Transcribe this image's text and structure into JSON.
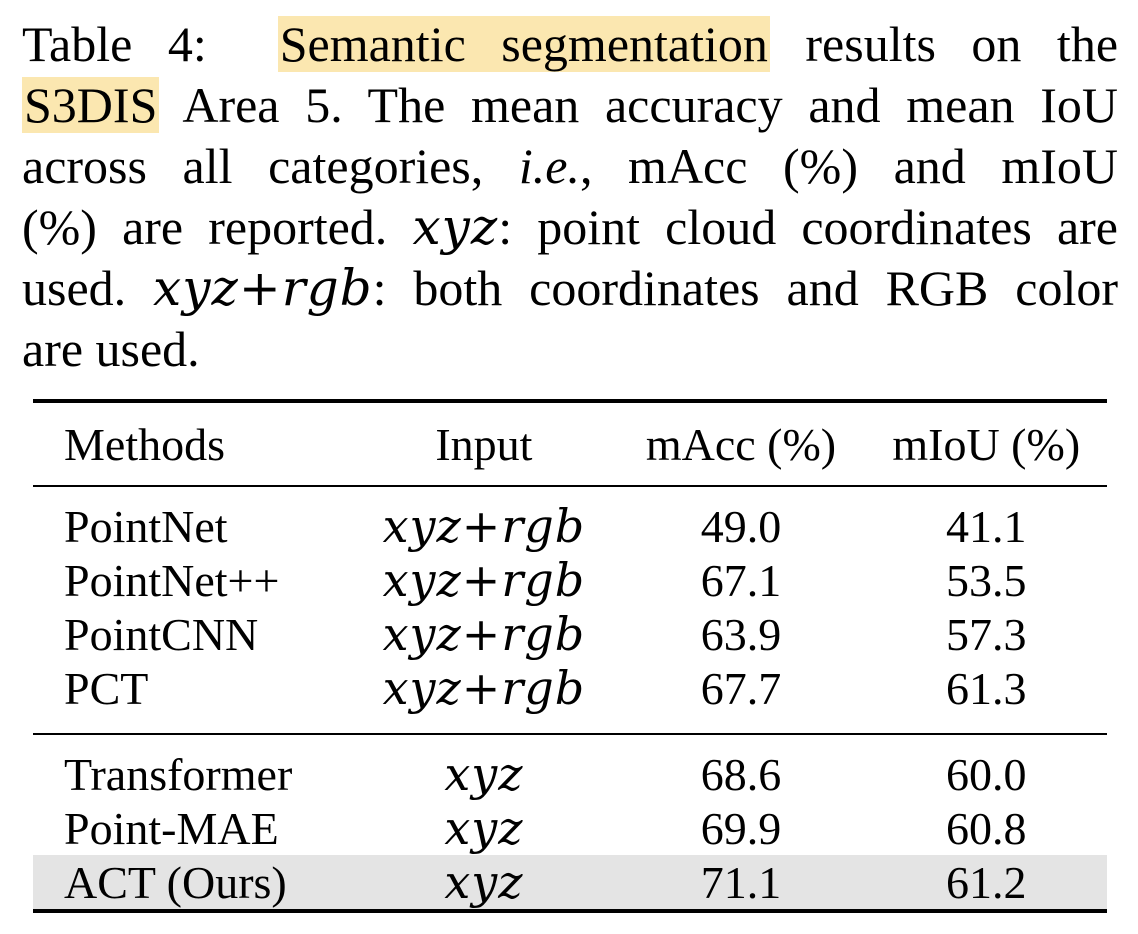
{
  "caption": {
    "label": "Table 4:",
    "highlight_1": "Semantic segmentation",
    "part_1": "results on the",
    "highlight_2": "S3DIS",
    "part_2": "Area 5. The mean accuracy and mean IoU",
    "part_3a": "across all categories,",
    "ie": "i.e.",
    "part_3b": ", mAcc (%) and mIoU",
    "part_4a": "(%) are reported.",
    "xyz": "xyz",
    "part_4b": ": point cloud coordinates are",
    "part_5a": "used.",
    "xyzrgb": "xyz+rgb",
    "part_5b": ": both coordinates and RGB color",
    "part_6": "are used.",
    "highlight_color": "#fbe7b0"
  },
  "table": {
    "headers": [
      "Methods",
      "Input",
      "mAcc (%)",
      "mIoU (%)"
    ],
    "group1": [
      {
        "method": "PointNet",
        "input": "xyz+rgb",
        "macc": "49.0",
        "miou": "41.1"
      },
      {
        "method": "PointNet++",
        "input": "xyz+rgb",
        "macc": "67.1",
        "miou": "53.5"
      },
      {
        "method": "PointCNN",
        "input": "xyz+rgb",
        "macc": "63.9",
        "miou": "57.3"
      },
      {
        "method": "PCT",
        "input": "xyz+rgb",
        "macc": "67.7",
        "miou": "61.3"
      }
    ],
    "group2": [
      {
        "method": "Transformer",
        "input": "xyz",
        "macc": "68.6",
        "miou": "60.0"
      },
      {
        "method": "Point-MAE",
        "input": "xyz",
        "macc": "69.9",
        "miou": "60.8"
      },
      {
        "method": "ACT (Ours)",
        "input": "xyz",
        "macc": "71.1",
        "miou": "61.2"
      }
    ],
    "highlight_row_color": "#e4e4e4"
  }
}
